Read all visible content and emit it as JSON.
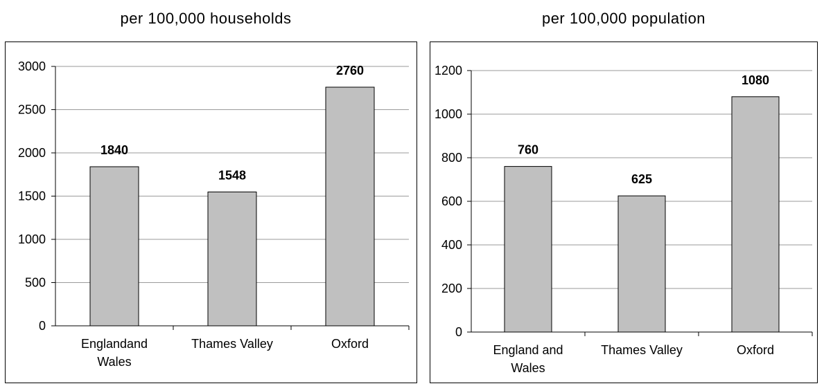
{
  "chart_data": [
    {
      "type": "bar",
      "title": "per 100,000 households",
      "categories": [
        "Englandand Wales",
        "Thames Valley",
        "Oxford"
      ],
      "category_lines": [
        [
          "Englandand",
          "Wales"
        ],
        [
          "Thames Valley"
        ],
        [
          "Oxford"
        ]
      ],
      "values": [
        1840,
        1548,
        2760
      ],
      "data_labels": [
        "1840",
        "1548",
        "2760"
      ],
      "ylim": [
        0,
        3000
      ],
      "yticks": [
        0,
        500,
        1000,
        1500,
        2000,
        2500,
        3000
      ],
      "ytick_labels": [
        "0",
        "500",
        "1000",
        "1500",
        "2000",
        "2500",
        "3000"
      ],
      "xlabel": "",
      "ylabel": "",
      "grid": true,
      "bar_color": "#c0c0c0"
    },
    {
      "type": "bar",
      "title": "per 100,000 population",
      "categories": [
        "England and Wales",
        "Thames Valley",
        "Oxford"
      ],
      "category_lines": [
        [
          "England and",
          "Wales"
        ],
        [
          "Thames Valley"
        ],
        [
          "Oxford"
        ]
      ],
      "values": [
        760,
        625,
        1080
      ],
      "data_labels": [
        "760",
        "625",
        "1080"
      ],
      "ylim": [
        0,
        1200
      ],
      "yticks": [
        0,
        200,
        400,
        600,
        800,
        1000,
        1200
      ],
      "ytick_labels": [
        "0",
        "200",
        "400",
        "600",
        "800",
        "1000",
        "1200"
      ],
      "xlabel": "",
      "ylabel": "",
      "grid": true,
      "bar_color": "#c0c0c0"
    }
  ]
}
